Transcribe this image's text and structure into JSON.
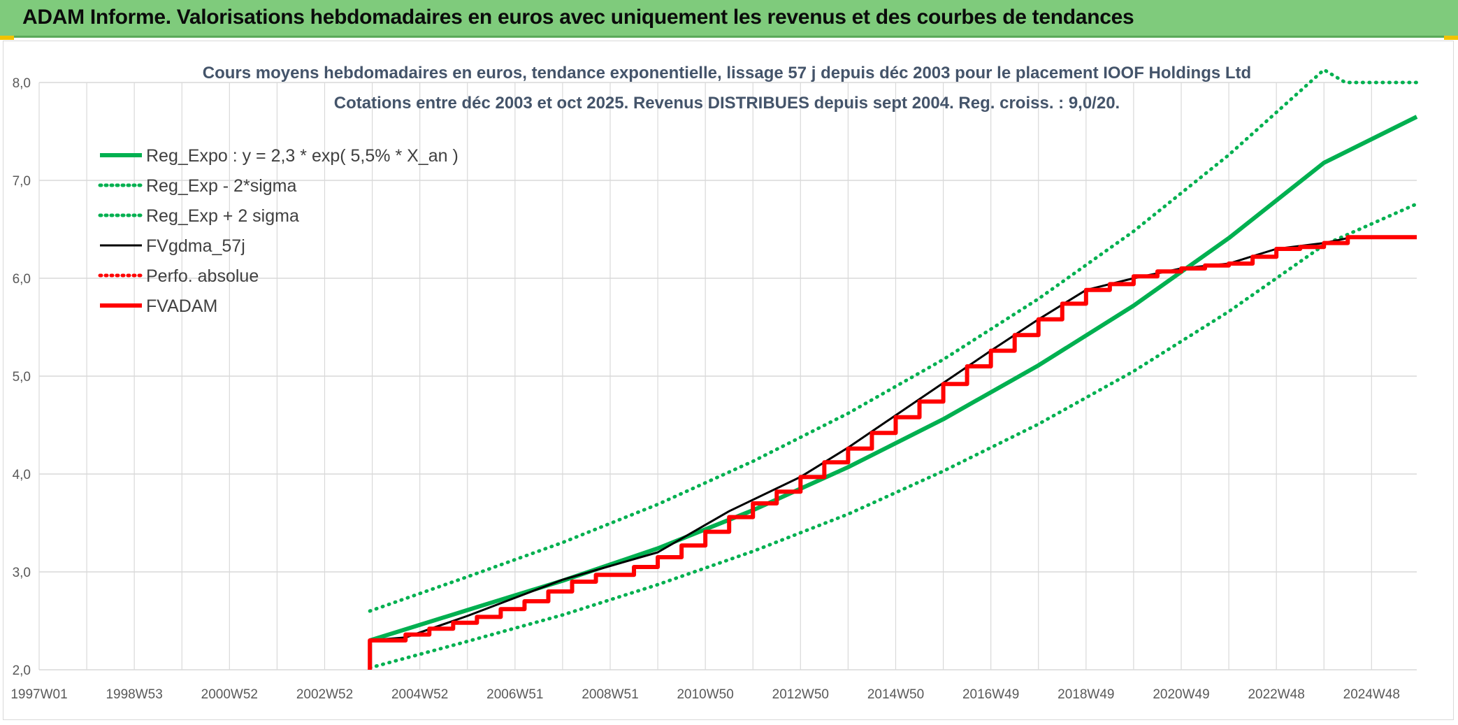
{
  "header": {
    "title": "ADAM Informe. Valorisations hebdomadaires en euros avec uniquement les revenus et des courbes de tendances"
  },
  "colors": {
    "header_bg": "#7fcb7c",
    "reg_green": "#00b050",
    "fvadam_red": "#ff0000",
    "fvgdma_black": "#000000",
    "grid": "#d9d9d9",
    "axis_text": "#595959",
    "title_text": "#44546a"
  },
  "chart_data": {
    "type": "line",
    "title": "Cours moyens hebdomadaires en euros, tendance exponentielle, lissage 57 j depuis déc 2003 pour le placement IOOF Holdings Ltd",
    "subtitle": "Cotations entre déc 2003 et oct 2025. Revenus DISTRIBUES depuis sept 2004. Reg. croiss. : 9,0/20.",
    "xlabel": "",
    "ylabel": "",
    "ylim": [
      2.0,
      8.0
    ],
    "yticks": [
      "2,0",
      "3,0",
      "4,0",
      "5,0",
      "6,0",
      "7,0",
      "8,0"
    ],
    "xlim": [
      1997.0,
      2025.95
    ],
    "xticks": [
      {
        "label": "1997W01",
        "x": 1997.0
      },
      {
        "label": "1998W53",
        "x": 1999.0
      },
      {
        "label": "2000W52",
        "x": 2001.0
      },
      {
        "label": "2002W52",
        "x": 2003.0
      },
      {
        "label": "2004W52",
        "x": 2005.0
      },
      {
        "label": "2006W51",
        "x": 2007.0
      },
      {
        "label": "2008W51",
        "x": 2009.0
      },
      {
        "label": "2010W50",
        "x": 2011.0
      },
      {
        "label": "2012W50",
        "x": 2013.0
      },
      {
        "label": "2014W50",
        "x": 2015.0
      },
      {
        "label": "2016W49",
        "x": 2017.0
      },
      {
        "label": "2018W49",
        "x": 2019.0
      },
      {
        "label": "2020W49",
        "x": 2021.0
      },
      {
        "label": "2022W48",
        "x": 2023.0
      },
      {
        "label": "2024W48",
        "x": 2025.0
      }
    ],
    "grid": true,
    "legend_position": "top-left",
    "series": [
      {
        "name": "Reg_Expo : y = 2,3 * exp( 5,5% *  X_an )",
        "style": "solid-thick",
        "color": "#00b050",
        "x": [
          2003.95,
          2006,
          2008,
          2010,
          2012,
          2014,
          2016,
          2018,
          2020,
          2022,
          2024,
          2025.95
        ],
        "y": [
          2.3,
          2.61,
          2.91,
          3.24,
          3.63,
          4.07,
          4.56,
          5.11,
          5.72,
          6.41,
          7.18,
          7.65
        ]
      },
      {
        "name": "Reg_Exp - 2*sigma",
        "style": "dotted",
        "color": "#00b050",
        "x": [
          2003.95,
          2006,
          2008,
          2010,
          2012,
          2014,
          2016,
          2018,
          2020,
          2022,
          2024,
          2025.95
        ],
        "y": [
          2.02,
          2.29,
          2.56,
          2.87,
          3.21,
          3.59,
          4.03,
          4.51,
          5.05,
          5.66,
          6.34,
          6.76
        ]
      },
      {
        "name": "Reg_Exp + 2 sigma",
        "style": "dotted",
        "color": "#00b050",
        "x": [
          2003.95,
          2006,
          2008,
          2010,
          2012,
          2014,
          2016,
          2018,
          2020,
          2022,
          2024,
          2024.45,
          2025.95
        ],
        "y": [
          2.6,
          2.95,
          3.3,
          3.69,
          4.13,
          4.62,
          5.17,
          5.79,
          6.48,
          7.26,
          8.13,
          8.0,
          8.0
        ]
      },
      {
        "name": "FVgdma_57j",
        "style": "solid",
        "color": "#000000",
        "x": [
          2003.95,
          2004.7,
          2006,
          2008,
          2010,
          2011.5,
          2013,
          2014,
          2015,
          2016,
          2017,
          2018,
          2019,
          2020,
          2021,
          2022,
          2023,
          2024,
          2024.6,
          2025.95
        ],
        "y": [
          2.3,
          2.33,
          2.55,
          2.92,
          3.2,
          3.62,
          3.97,
          4.27,
          4.6,
          4.93,
          5.26,
          5.58,
          5.88,
          6.0,
          6.1,
          6.15,
          6.3,
          6.36,
          6.42,
          6.42
        ]
      },
      {
        "name": "Perfo. absolue",
        "style": "dotted",
        "color": "#ff0000",
        "x": [],
        "y": []
      },
      {
        "name": "FVADAM",
        "style": "step-thick",
        "color": "#ff0000",
        "x": [
          2003.95,
          2003.95,
          2004.7,
          2005.2,
          2005.7,
          2006.2,
          2006.7,
          2007.2,
          2007.7,
          2008.2,
          2008.7,
          2009.5,
          2010.0,
          2010.5,
          2011.0,
          2011.5,
          2012.0,
          2012.5,
          2013.0,
          2013.5,
          2014.0,
          2014.5,
          2015.0,
          2015.5,
          2016.0,
          2016.5,
          2017.0,
          2017.5,
          2018.0,
          2018.5,
          2019.0,
          2019.5,
          2020.0,
          2020.5,
          2021.0,
          2021.5,
          2022.0,
          2022.5,
          2023.0,
          2023.5,
          2024.0,
          2024.5,
          2025.95
        ],
        "y": [
          2.0,
          2.3,
          2.36,
          2.42,
          2.48,
          2.54,
          2.62,
          2.7,
          2.8,
          2.9,
          2.97,
          3.05,
          3.15,
          3.27,
          3.41,
          3.56,
          3.7,
          3.82,
          3.97,
          4.12,
          4.26,
          4.42,
          4.58,
          4.74,
          4.92,
          5.1,
          5.26,
          5.42,
          5.58,
          5.74,
          5.88,
          5.94,
          6.02,
          6.07,
          6.1,
          6.13,
          6.15,
          6.22,
          6.3,
          6.32,
          6.36,
          6.42,
          6.42
        ]
      }
    ]
  }
}
